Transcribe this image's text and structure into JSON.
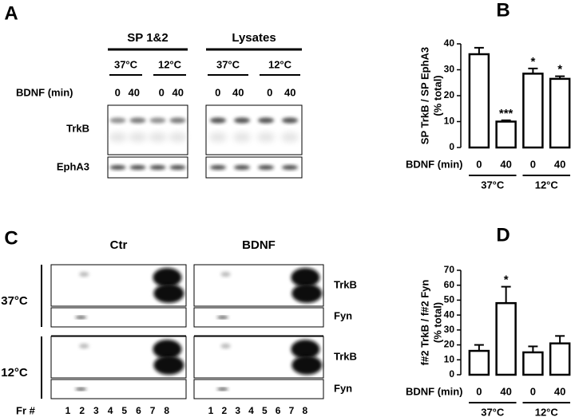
{
  "panel_A": {
    "letter": "A",
    "groups": [
      "SP 1&2",
      "Lysates"
    ],
    "temperatures": [
      "37°C",
      "12°C"
    ],
    "treatment_label": "BDNF (min)",
    "times": [
      "0",
      "40"
    ],
    "proteins": [
      "TrkB",
      "EphA3"
    ]
  },
  "panel_C": {
    "letter": "C",
    "conditions": [
      "Ctr",
      "BDNF"
    ],
    "temperatures": [
      "37°C",
      "12°C"
    ],
    "proteins": [
      "TrkB",
      "Fyn"
    ],
    "fraction_label": "Fr #",
    "fractions": [
      1,
      2,
      3,
      4,
      5,
      6,
      7,
      8
    ]
  },
  "chart_data": [
    {
      "panel": "B",
      "type": "bar",
      "y_label": [
        "SP TrkB / SP EphA3",
        "(% total)"
      ],
      "x_label": "BDNF (min)",
      "categories": [
        "0",
        "40",
        "0",
        "40"
      ],
      "group_labels": [
        "37°C",
        "12°C"
      ],
      "values": [
        36,
        10,
        28.5,
        26.5
      ],
      "errors": [
        2.5,
        0.5,
        2,
        1
      ],
      "significance": [
        null,
        "***",
        "*",
        "*"
      ],
      "color": "#ffffff",
      "edgecolor": "#000000",
      "ylim": [
        0,
        40
      ],
      "yticks": [
        0,
        10,
        20,
        30,
        40
      ]
    },
    {
      "panel": "D",
      "type": "bar",
      "y_label": [
        "f#2 TrkB / f#2 Fyn",
        "(% total)"
      ],
      "x_label": "BDNF (min)",
      "categories": [
        "0",
        "40",
        "0",
        "40"
      ],
      "group_labels": [
        "37°C",
        "12°C"
      ],
      "values": [
        16,
        48,
        15,
        21
      ],
      "errors": [
        4,
        11,
        4,
        5
      ],
      "significance": [
        null,
        "*",
        null,
        null
      ],
      "color": "#ffffff",
      "edgecolor": "#000000",
      "ylim": [
        0,
        70
      ],
      "yticks": [
        0,
        10,
        20,
        30,
        40,
        50,
        60,
        70
      ]
    }
  ]
}
